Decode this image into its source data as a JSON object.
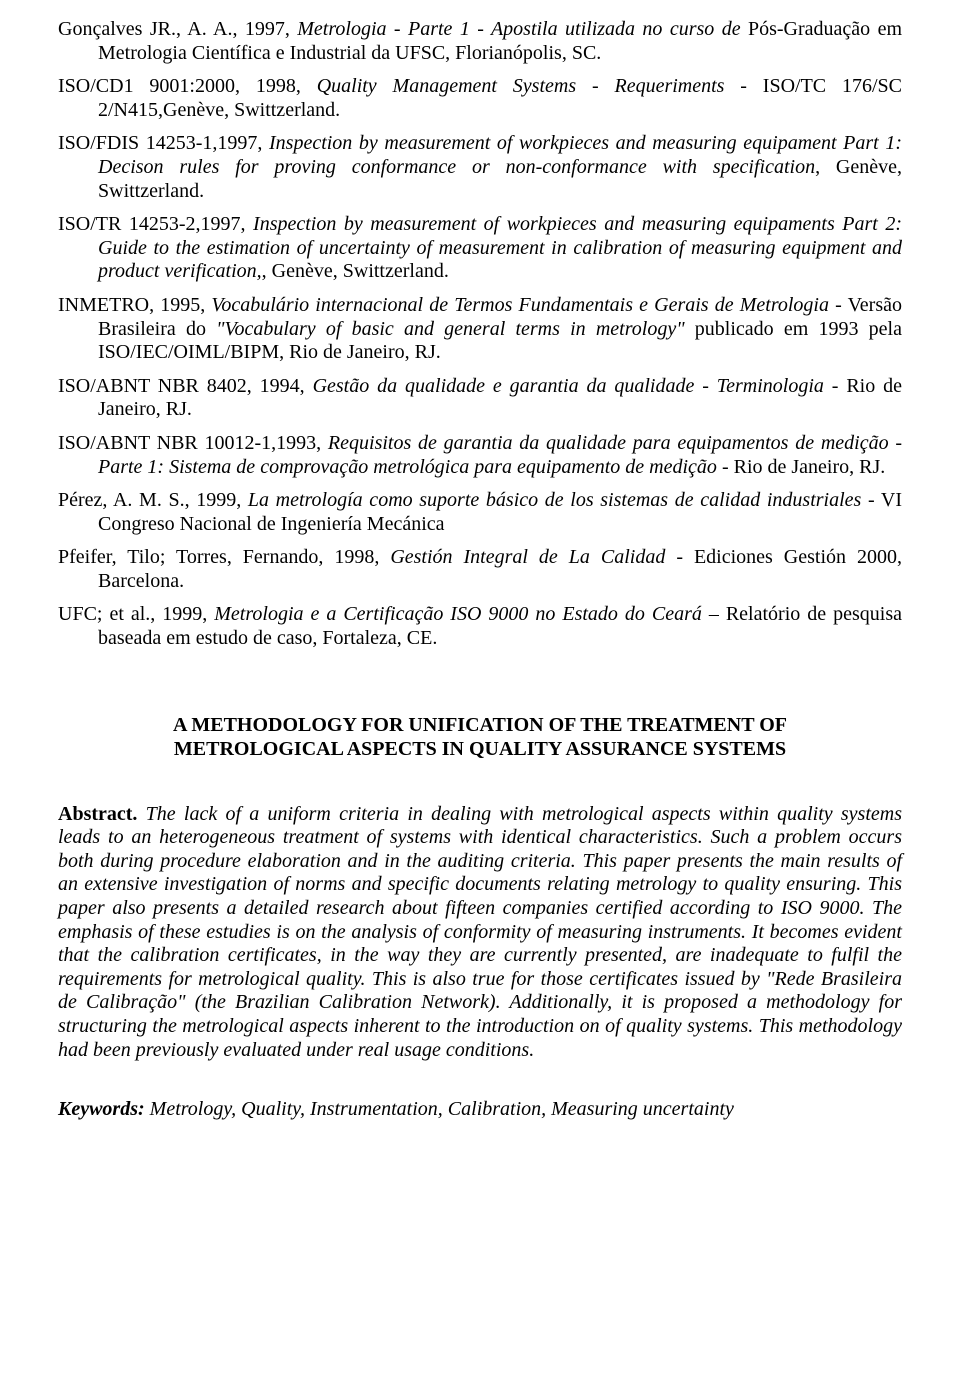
{
  "references": [
    {
      "prefix": "Gonçalves JR., A. A., 1997, ",
      "title_italic": "Metrologia - Parte 1 - Apostila utilizada no curso de",
      "between": "     Pós-Graduação em Metrologia Científica e Industrial  da UFSC, Florianópolis, SC.",
      "suffix": ""
    },
    {
      "prefix": "ISO/CD1 9001:2000, 1998, ",
      "title_italic": "Quality Management Systems - Requeriments -",
      "between": "  ISO/TC 176/SC 2/N415,Genève, Swittzerland.",
      "suffix": ""
    },
    {
      "prefix": "ISO/FDIS 14253-1,1997, ",
      "title_italic": "Inspection by measurement of workpieces and measuring equipament Part 1: Decison rules for proving conformance or non-conformance with specification",
      "between": ", Genève, Swittzerland.",
      "suffix": ""
    },
    {
      "prefix": "ISO/TR 14253-2,1997, ",
      "title_italic": "Inspection by measurement of workpieces and measuring equipaments Part 2: Guide to the estimation  of uncertainty of measurement in calibration of measuring equipment and product  verification,",
      "between": ", Genève, Swittzerland.",
      "suffix": ""
    },
    {
      "prefix": "INMETRO, 1995, ",
      "title_italic": "Vocabulário internacional de Termos Fundamentais e Gerais de Metrologia",
      "between": " - Versão Brasileira do ",
      "title_italic2": "\"Vocabulary of basic and general terms in metrology\"",
      "suffix": " publicado em 1993 pela ISO/IEC/OIML/BIPM, Rio de Janeiro, RJ."
    },
    {
      "prefix": "ISO/ABNT NBR 8402, 1994, ",
      "title_italic": "Gestão da qualidade e garantia da qualidade - Terminologia",
      "between": " - Rio de Janeiro, RJ.",
      "suffix": ""
    },
    {
      "prefix": "ISO/ABNT NBR 10012-1,1993, ",
      "title_italic": "Requisitos de garantia da qualidade para equipamentos de medição - Parte 1: Sistema de comprovação metrológica para equipamento de medição",
      "between": " - Rio de Janeiro, RJ.",
      "suffix": ""
    },
    {
      "prefix": "Pérez, A. M. S., 1999, ",
      "title_italic": "La metrología como suporte básico de los sistemas de calidad industriales",
      "between": " - VI Congreso Nacional de Ingeniería Mecánica",
      "suffix": ""
    },
    {
      "prefix": "Pfeifer, Tilo; Torres, Fernando, 1998, ",
      "title_italic": "Gestión Integral de La Calidad",
      "between": " -  Ediciones Gestión 2000, Barcelona.",
      "suffix": ""
    },
    {
      "prefix": "UFC; et al., 1999, ",
      "title_italic": "Metrologia e a Certificação ISO 9000 no Estado do Ceará",
      "between": " – Relatório de pesquisa baseada em estudo de caso, Fortaleza, CE.",
      "suffix": ""
    }
  ],
  "section_title_line1": "A METHODOLOGY FOR UNIFICATION OF THE TREATMENT OF",
  "section_title_line2": "METROLOGICAL ASPECTS IN QUALITY ASSURANCE SYSTEMS",
  "abstract": {
    "label": "Abstract.",
    "text": " The lack of a uniform criteria in dealing with metrological aspects within quality systems leads to an heterogeneous treatment of systems with identical characteristics. Such a problem occurs both during procedure elaboration and in the auditing criteria. This paper presents the main results of an extensive investigation of norms and specific documents relating metrology to quality ensuring. This paper also presents  a detailed research about fifteen companies certified according to ISO 9000. The emphasis of these estudies is on the analysis of conformity of measuring instruments. It becomes evident that the calibration certificates, in the way they are currently presented, are inadequate to fulfil the requirements for metrological quality. This is also true for those certificates issued by \"Rede Brasileira de Calibração\" (the Brazilian Calibration Network). Additionally, it is proposed a methodology for structuring the metrological aspects inherent to the introduction on of quality systems. This methodology had been previously evaluated under real usage conditions."
  },
  "keywords": {
    "label": "Keywords:",
    "text": " Metrology, Quality, Instrumentation, Calibration, Measuring uncertainty"
  }
}
